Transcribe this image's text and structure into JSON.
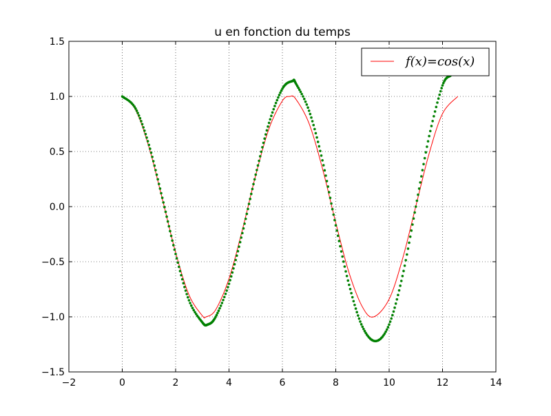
{
  "chart_data": {
    "type": "line",
    "title": "u en fonction du temps",
    "xlabel": "",
    "ylabel": "",
    "xlim": [
      -2,
      14
    ],
    "ylim": [
      -1.5,
      1.5
    ],
    "x_ticks": [
      -2,
      0,
      2,
      4,
      6,
      8,
      10,
      12,
      14
    ],
    "y_ticks": [
      -1.5,
      -1.0,
      -0.5,
      0.0,
      0.5,
      1.0,
      1.5
    ],
    "x_tick_labels": [
      "−2",
      "0",
      "2",
      "4",
      "6",
      "8",
      "10",
      "12",
      "14"
    ],
    "y_tick_labels": [
      "−1.5",
      "−1.0",
      "−0.5",
      "0.0",
      "0.5",
      "1.0",
      "1.5"
    ],
    "grid": true,
    "legend_position": "top-right",
    "series": [
      {
        "name": "f(x)=cos(x)",
        "style": "line",
        "color": "#ff0000",
        "x": [
          0.0,
          0.5,
          1.0,
          1.5,
          2.0,
          2.5,
          3.0,
          3.14,
          3.5,
          4.0,
          4.5,
          5.0,
          5.5,
          6.0,
          6.28,
          6.5,
          7.0,
          7.5,
          8.0,
          8.5,
          9.0,
          9.42,
          10.0,
          10.5,
          11.0,
          11.5,
          12.0,
          12.57
        ],
        "y": [
          1.0,
          0.878,
          0.54,
          0.071,
          -0.416,
          -0.801,
          -0.99,
          -1.0,
          -0.936,
          -0.654,
          -0.211,
          0.284,
          0.709,
          0.96,
          1.0,
          0.977,
          0.754,
          0.347,
          -0.146,
          -0.602,
          -0.911,
          -1.0,
          -0.839,
          -0.476,
          0.004,
          0.483,
          0.844,
          1.0
        ]
      },
      {
        "name": "",
        "style": "dots",
        "color": "#008000",
        "x": [
          0.0,
          0.5,
          1.0,
          1.5,
          2.0,
          2.5,
          3.0,
          3.2,
          3.5,
          4.0,
          4.5,
          5.0,
          5.5,
          6.0,
          6.38,
          6.5,
          7.0,
          7.5,
          8.0,
          8.5,
          9.0,
          9.5,
          10.0,
          10.5,
          11.0,
          11.5,
          12.0,
          12.3
        ],
        "y": [
          1.0,
          0.89,
          0.56,
          0.08,
          -0.43,
          -0.85,
          -1.05,
          -1.07,
          -1.0,
          -0.7,
          -0.24,
          0.29,
          0.76,
          1.07,
          1.14,
          1.12,
          0.87,
          0.42,
          -0.17,
          -0.71,
          -1.09,
          -1.22,
          -1.07,
          -0.63,
          0.0,
          0.64,
          1.1,
          1.19
        ]
      }
    ]
  }
}
